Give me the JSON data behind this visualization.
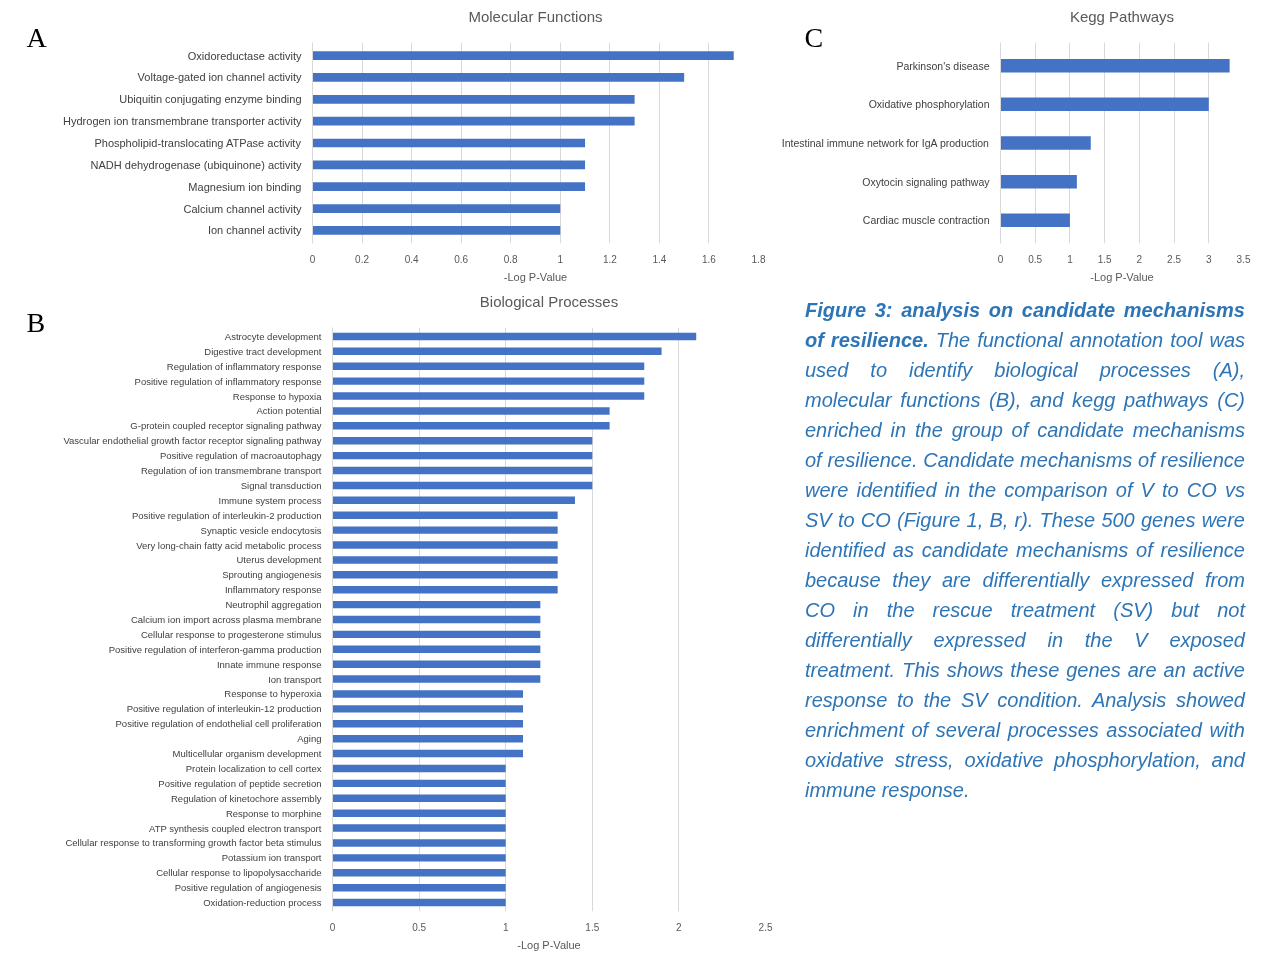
{
  "chart_data": [
    {
      "type": "bar",
      "orientation": "horizontal",
      "title": "Molecular Functions",
      "xlabel": "-Log P-Value",
      "annotations": [
        "A"
      ],
      "color": "#4472c4",
      "grid": "x",
      "xlim": [
        0,
        1.8
      ],
      "xticks": [
        0,
        0.2,
        0.4,
        0.6,
        0.8,
        1,
        1.2,
        1.4,
        1.6,
        1.8
      ],
      "categories": [
        "Oxidoreductase activity",
        "Voltage-gated ion channel activity",
        "Ubiquitin conjugating enzyme binding",
        "Hydrogen ion transmembrane transporter activity",
        "Phospholipid-translocating ATPase activity",
        "NADH dehydrogenase (ubiquinone) activity",
        "Magnesium ion binding",
        "Calcium channel activity",
        "Ion channel activity"
      ],
      "values": [
        1.7,
        1.5,
        1.3,
        1.3,
        1.1,
        1.1,
        1.1,
        1.0,
        1.0
      ]
    },
    {
      "type": "bar",
      "orientation": "horizontal",
      "title": "Kegg Pathways",
      "xlabel": "-Log P-Value",
      "annotations": [
        "C"
      ],
      "color": "#4472c4",
      "grid": "x",
      "xlim": [
        0,
        3.5
      ],
      "xticks": [
        0,
        0.5,
        1,
        1.5,
        2,
        2.5,
        3,
        3.5
      ],
      "categories": [
        "Parkinson's disease",
        "Oxidative phosphorylation",
        "Intestinal immune network for IgA production",
        "Oxytocin signaling pathway",
        "Cardiac muscle contraction"
      ],
      "values": [
        3.3,
        3.0,
        1.3,
        1.1,
        1.0
      ]
    },
    {
      "type": "bar",
      "orientation": "horizontal",
      "title": "Biological Processes",
      "xlabel": "-Log P-Value",
      "annotations": [
        "B"
      ],
      "color": "#4472c4",
      "grid": "x",
      "xlim": [
        0,
        2.5
      ],
      "xticks": [
        0,
        0.5,
        1,
        1.5,
        2,
        2.5
      ],
      "categories": [
        "Astrocyte development",
        "Digestive tract development",
        "Regulation of inflammatory response",
        "Positive regulation of inflammatory response",
        "Response to hypoxia",
        "Action potential",
        "G-protein coupled receptor signaling pathway",
        "Vascular endothelial growth factor receptor signaling pathway",
        "Positive regulation of macroautophagy",
        "Regulation of ion transmembrane transport",
        "Signal transduction",
        "Immune system process",
        "Positive regulation of interleukin-2 production",
        "Synaptic vesicle endocytosis",
        "Very long-chain fatty acid metabolic process",
        "Uterus development",
        "Sprouting angiogenesis",
        "Inflammatory response",
        "Neutrophil aggregation",
        "Calcium ion import across plasma membrane",
        "Cellular response to progesterone stimulus",
        "Positive regulation of interferon-gamma production",
        "Innate immune response",
        "Ion transport",
        "Response to hyperoxia",
        "Positive regulation of interleukin-12 production",
        "Positive regulation of endothelial cell proliferation",
        "Aging",
        "Multicellular organism development",
        "Protein localization to cell cortex",
        "Positive regulation of peptide secretion",
        "Regulation of kinetochore assembly",
        "Response to morphine",
        "ATP synthesis coupled electron transport",
        "Cellular response to transforming growth factor beta stimulus",
        "Potassium ion transport",
        "Cellular response to lipopolysaccharide",
        "Positive regulation of angiogenesis",
        "Oxidation-reduction process"
      ],
      "values": [
        2.1,
        1.9,
        1.8,
        1.8,
        1.8,
        1.6,
        1.6,
        1.5,
        1.5,
        1.5,
        1.5,
        1.4,
        1.3,
        1.3,
        1.3,
        1.3,
        1.3,
        1.3,
        1.2,
        1.2,
        1.2,
        1.2,
        1.2,
        1.2,
        1.1,
        1.1,
        1.1,
        1.1,
        1.1,
        1.0,
        1.0,
        1.0,
        1.0,
        1.0,
        1.0,
        1.0,
        1.0,
        1.0,
        1.0
      ]
    },
    {
      "type": "other",
      "title": "Figure 3: analysis on candidate mechanisms of resilience.",
      "annotations": [
        "The functional annotation tool was used to identify biological processes (A), molecular functions (B), and kegg pathways (C) enriched in the group of candidate mechanisms of resilience. Candidate mechanisms of resilience were identified in the comparison of V to CO vs SV to CO (Figure 1, B, r). These 500 genes were identified as candidate mechanisms of resilience because they are differentially expressed from CO in the rescue treatment (SV) but not differentially expressed in the V exposed treatment. This shows these genes are an active response to the SV condition. Analysis showed enrichment of several processes associated with oxidative stress, oxidative phosphorylation, and immune response."
      ]
    }
  ]
}
